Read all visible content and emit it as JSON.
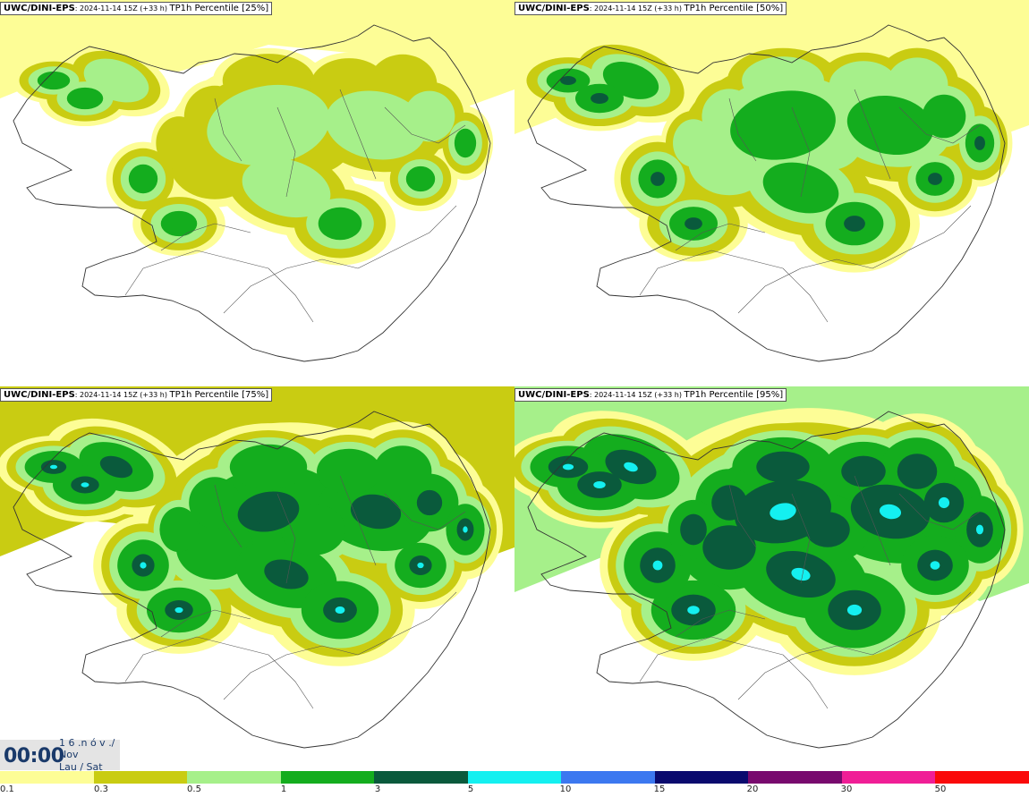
{
  "panels": [
    {
      "source": "UWC/DINI-EPS",
      "run": ": 2024-11-14 15Z (+33 h) ",
      "field": "TP1h Percentile [25%]",
      "intensity": 0
    },
    {
      "source": "UWC/DINI-EPS",
      "run": ": 2024-11-14 15Z (+33 h) ",
      "field": "TP1h Percentile [50%]",
      "intensity": 1
    },
    {
      "source": "UWC/DINI-EPS",
      "run": ": 2024-11-14 15Z (+33 h) ",
      "field": "TP1h Percentile [75%]",
      "intensity": 2
    },
    {
      "source": "UWC/DINI-EPS",
      "run": ": 2024-11-14 15Z (+33 h) ",
      "field": "TP1h Percentile [95%]",
      "intensity": 3
    }
  ],
  "timestamp": {
    "time": "00:00",
    "day": "1 6 .n ó v ./",
    "month": "Nov",
    "weekday": "Lau / Sat"
  },
  "legend": {
    "labels": [
      "0.1",
      "0.3",
      "0.5",
      "1",
      "3",
      "5",
      "10",
      "15",
      "20",
      "30",
      "50"
    ],
    "colors": [
      "#fdfd96",
      "#c9cc12",
      "#a6f08a",
      "#14ad1e",
      "#0a5a3c",
      "#14f0f0",
      "#3c78f0",
      "#0a0a6e",
      "#780a6e",
      "#f01e96",
      "#fa0a0a"
    ]
  }
}
